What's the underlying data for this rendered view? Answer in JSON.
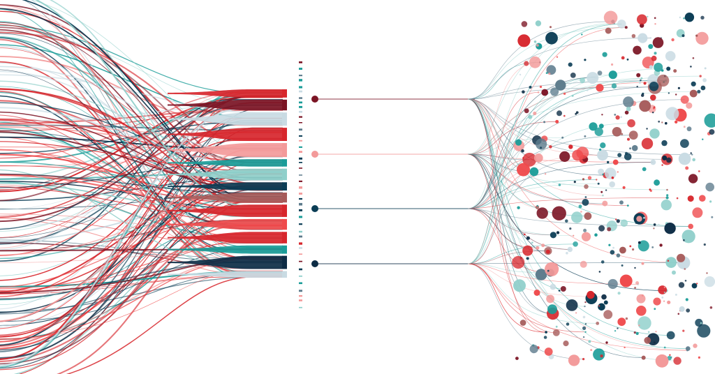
{
  "palette": {
    "navy": "#0b3d55",
    "dark_navy": "#0d2c45",
    "red": "#d7262c",
    "coral": "#ef4a4c",
    "pink": "#f39a9a",
    "maroon": "#7b1424",
    "teal": "#1a9c98",
    "light_teal": "#8fcfca",
    "mauve": "#a65a59",
    "slate": "#5d7b8c",
    "pale_blue": "#c9dbe3",
    "background": "#ffffff"
  },
  "bands": [
    {
      "color": "red",
      "weight": 1.0
    },
    {
      "color": "maroon",
      "weight": 1.3
    },
    {
      "color": "pale_blue",
      "weight": 1.6
    },
    {
      "color": "red",
      "weight": 1.6
    },
    {
      "color": "pink",
      "weight": 1.7
    },
    {
      "color": "teal",
      "weight": 0.9
    },
    {
      "color": "light_teal",
      "weight": 1.4
    },
    {
      "color": "navy",
      "weight": 1.0
    },
    {
      "color": "mauve",
      "weight": 1.2
    },
    {
      "color": "red",
      "weight": 1.5
    },
    {
      "color": "coral",
      "weight": 1.3
    },
    {
      "color": "red",
      "weight": 1.4
    },
    {
      "color": "teal",
      "weight": 1.0
    },
    {
      "color": "dark_navy",
      "weight": 1.6
    },
    {
      "color": "pale_blue",
      "weight": 0.8
    }
  ],
  "channels": [
    {
      "color": "maroon"
    },
    {
      "color": "pink"
    },
    {
      "color": "navy"
    },
    {
      "color": "dark_navy"
    }
  ]
}
